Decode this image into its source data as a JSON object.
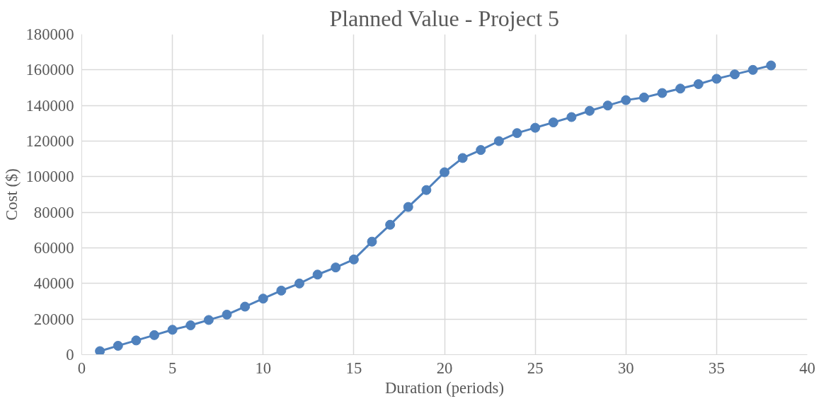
{
  "chart_data": {
    "type": "line",
    "title": "Planned Value - Project 5",
    "xlabel": "Duration (periods)",
    "ylabel": "Cost ($)",
    "x": [
      1,
      2,
      3,
      4,
      5,
      6,
      7,
      8,
      9,
      10,
      11,
      12,
      13,
      14,
      15,
      16,
      17,
      18,
      19,
      20,
      21,
      22,
      23,
      24,
      25,
      26,
      27,
      28,
      29,
      30,
      31,
      32,
      33,
      34,
      35,
      36,
      37,
      38
    ],
    "series": [
      {
        "color": "#4f81bd",
        "values": [
          2000,
          5000,
          8000,
          11000,
          14000,
          16500,
          19500,
          22500,
          27000,
          31500,
          36000,
          40000,
          45000,
          49000,
          53500,
          63500,
          73000,
          83000,
          92500,
          102500,
          110500,
          115000,
          120000,
          124500,
          127500,
          130500,
          133500,
          137000,
          140000,
          143000,
          144500,
          147000,
          149500,
          152000,
          155000,
          157500,
          160000,
          162500
        ]
      }
    ],
    "xlim": [
      0,
      40
    ],
    "xticks": [
      0,
      5,
      10,
      15,
      20,
      25,
      30,
      35,
      40
    ],
    "ylim": [
      0,
      180000
    ],
    "yticks": [
      0,
      20000,
      40000,
      60000,
      80000,
      100000,
      120000,
      140000,
      160000,
      180000
    ],
    "grid": true,
    "marker": "circle",
    "line_style": "solid"
  }
}
